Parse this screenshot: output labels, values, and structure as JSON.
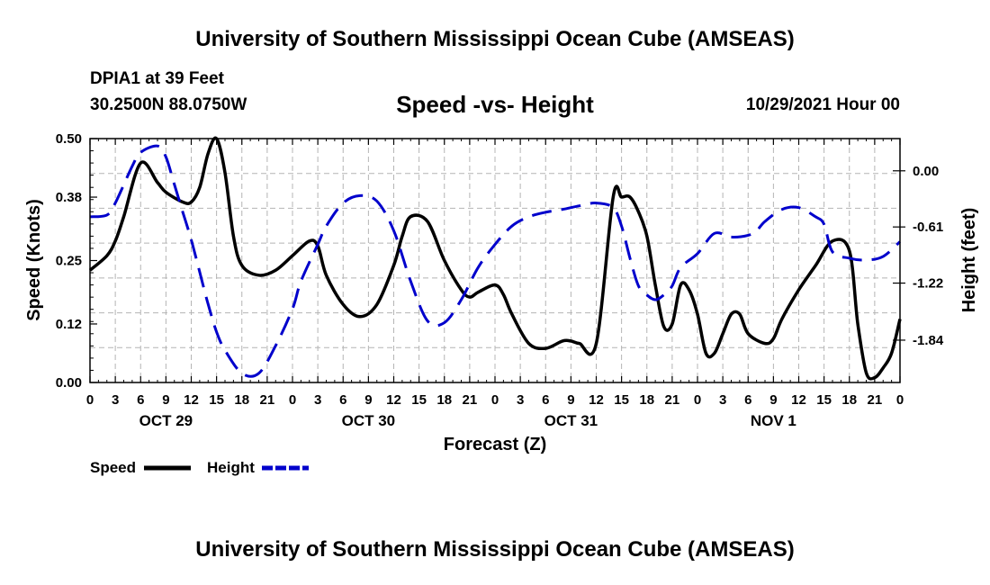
{
  "header": {
    "title": "University of Southern Mississippi Ocean Cube (AMSEAS)",
    "station": "DPIA1 at 39 Feet",
    "location": "30.2500N  88.0750W",
    "subtitle": "Speed -vs- Height",
    "date": "10/29/2021 Hour 00",
    "footer_title": "University of Southern Mississippi Ocean Cube (AMSEAS)"
  },
  "chart_data": {
    "type": "line",
    "title": "Speed -vs- Height",
    "xlabel": "Forecast (Z)",
    "ylabel": "Speed (Knots)",
    "y2label": "Height (feet)",
    "x_range": [
      0,
      96
    ],
    "ylim": [
      0,
      0.5
    ],
    "y2lim": [
      -2.3,
      0.35
    ],
    "grid": true,
    "legend_position": "bottom-left",
    "x_tick_labels": [
      "0",
      "3",
      "6",
      "9",
      "12",
      "15",
      "18",
      "21",
      "0",
      "3",
      "6",
      "9",
      "12",
      "15",
      "18",
      "21",
      "0",
      "3",
      "6",
      "9",
      "12",
      "15",
      "18",
      "21",
      "0",
      "3",
      "6",
      "9",
      "12",
      "15",
      "18",
      "21",
      "0"
    ],
    "date_labels": [
      {
        "hour": 9,
        "label": "OCT 29"
      },
      {
        "hour": 33,
        "label": "OCT 30"
      },
      {
        "hour": 57,
        "label": "OCT 31"
      },
      {
        "hour": 81,
        "label": "NOV 1"
      }
    ],
    "y_ticks": [
      "0.00",
      "0.12",
      "0.25",
      "0.38",
      "0.50"
    ],
    "y2_ticks": [
      "-1.84",
      "-1.22",
      "-0.61",
      "0.00"
    ],
    "series": [
      {
        "name": "Speed",
        "axis": "left",
        "color": "#000000",
        "style": "solid",
        "x": [
          0,
          2,
          3,
          4,
          6,
          8,
          9,
          11,
          12,
          13,
          14,
          15,
          16,
          17,
          18,
          20,
          22,
          24,
          26,
          27,
          28,
          30,
          32,
          34,
          36,
          37,
          38,
          40,
          42,
          44,
          45,
          46,
          48,
          49,
          50,
          52,
          54,
          56,
          57,
          58,
          60,
          62,
          63,
          64,
          65,
          66,
          67,
          68,
          69,
          70,
          71,
          72,
          73,
          74,
          75,
          76,
          77,
          78,
          80,
          81,
          82,
          84,
          86,
          88,
          90,
          91,
          92,
          93,
          94,
          95,
          96
        ],
        "values": [
          0.23,
          0.26,
          0.29,
          0.34,
          0.45,
          0.41,
          0.39,
          0.37,
          0.37,
          0.4,
          0.47,
          0.5,
          0.43,
          0.3,
          0.24,
          0.22,
          0.23,
          0.26,
          0.29,
          0.28,
          0.22,
          0.16,
          0.135,
          0.16,
          0.24,
          0.3,
          0.34,
          0.33,
          0.25,
          0.19,
          0.175,
          0.185,
          0.2,
          0.18,
          0.14,
          0.08,
          0.07,
          0.085,
          0.085,
          0.08,
          0.08,
          0.38,
          0.38,
          0.38,
          0.35,
          0.3,
          0.2,
          0.115,
          0.12,
          0.2,
          0.19,
          0.14,
          0.06,
          0.06,
          0.1,
          0.14,
          0.14,
          0.1,
          0.08,
          0.09,
          0.13,
          0.19,
          0.24,
          0.29,
          0.27,
          0.12,
          0.02,
          0.01,
          0.03,
          0.06,
          0.13
        ]
      },
      {
        "name": "Height",
        "axis": "right",
        "color": "#0000cc",
        "style": "dashed",
        "x": [
          0,
          2,
          3,
          5,
          6,
          8,
          9,
          10,
          11,
          12,
          13,
          14,
          15,
          16,
          18,
          20,
          22,
          24,
          25,
          27,
          28,
          30,
          32,
          34,
          36,
          38,
          40,
          42,
          44,
          46,
          48,
          50,
          52,
          54,
          56,
          58,
          60,
          62,
          63,
          64,
          65,
          66,
          67,
          68,
          69,
          70,
          72,
          74,
          76,
          78,
          79,
          80,
          82,
          84,
          86,
          87,
          88,
          90,
          92,
          94,
          96
        ],
        "values": [
          -0.5,
          -0.48,
          -0.35,
          0.05,
          0.2,
          0.27,
          0.15,
          -0.15,
          -0.45,
          -0.75,
          -1.1,
          -1.45,
          -1.75,
          -1.95,
          -2.2,
          -2.2,
          -1.9,
          -1.5,
          -1.2,
          -0.8,
          -0.6,
          -0.35,
          -0.27,
          -0.33,
          -0.65,
          -1.2,
          -1.63,
          -1.65,
          -1.4,
          -1.05,
          -0.8,
          -0.6,
          -0.5,
          -0.45,
          -0.42,
          -0.38,
          -0.35,
          -0.4,
          -0.6,
          -0.95,
          -1.25,
          -1.35,
          -1.4,
          -1.35,
          -1.25,
          -1.05,
          -0.9,
          -0.68,
          -0.72,
          -0.7,
          -0.65,
          -0.55,
          -0.42,
          -0.4,
          -0.5,
          -0.58,
          -0.88,
          -0.95,
          -0.97,
          -0.93,
          -0.77
        ]
      }
    ]
  }
}
